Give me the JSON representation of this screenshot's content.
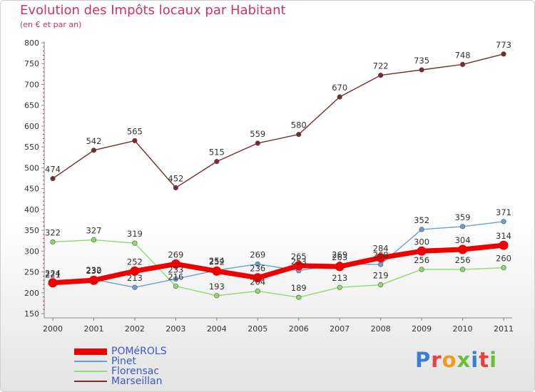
{
  "header": {
    "title": "Evolution des Impôts locaux par Habitant",
    "subtitle": "(en € et par an)"
  },
  "logo": {
    "text": "Proxiti",
    "colors": [
      "#3a7fd4",
      "#e8423f",
      "#f29a1f",
      "#6cbf3c",
      "#3a7fd4",
      "#e8423f",
      "#6cbf3c"
    ]
  },
  "chart_data": {
    "type": "line",
    "x": [
      "2000",
      "2001",
      "2002",
      "2003",
      "2004",
      "2005",
      "2006",
      "2007",
      "2008",
      "2009",
      "2010",
      "2011"
    ],
    "ylim": [
      150,
      800
    ],
    "yticks": [
      150,
      200,
      250,
      300,
      350,
      400,
      450,
      500,
      550,
      600,
      650,
      700,
      750,
      800
    ],
    "grid": false,
    "legend_position": "bottom-left",
    "series": [
      {
        "name": "POMéROLS",
        "color": "#ee0000",
        "values": [
          224,
          230,
          252,
          269,
          252,
          236,
          265,
          263,
          284,
          300,
          304,
          314
        ]
      },
      {
        "name": "Pinet",
        "color": "#6a9fd4",
        "values": [
          221,
          232,
          213,
          233,
          254,
          269,
          253,
          269,
          268,
          352,
          359,
          371
        ]
      },
      {
        "name": "Florensac",
        "color": "#8ddb6a",
        "values": [
          322,
          327,
          319,
          216,
          193,
          204,
          189,
          213,
          219,
          256,
          256,
          260
        ]
      },
      {
        "name": "Marseillan",
        "color": "#7a2b2e",
        "values": [
          474,
          542,
          565,
          452,
          515,
          559,
          580,
          670,
          722,
          735,
          748,
          773
        ]
      }
    ]
  }
}
